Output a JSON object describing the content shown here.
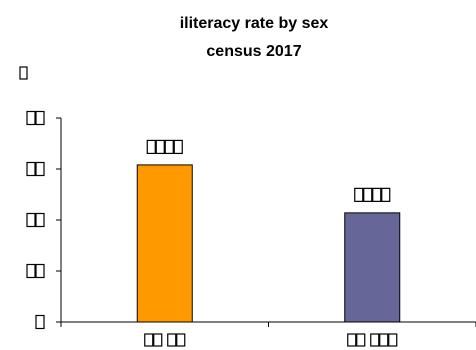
{
  "chart_data": {
    "type": "bar",
    "title": "iliteracy rate by sex",
    "subtitle": "census 2017",
    "xlabel": "",
    "ylabel": "",
    "ylim": [
      0,
      40
    ],
    "y_ticks": [
      0,
      10,
      20,
      30,
      40
    ],
    "categories": [
      "",
      ""
    ],
    "values": [
      30.8,
      21.4
    ],
    "data_labels": [
      "",
      ""
    ],
    "bar_colors": [
      "#ff9900",
      "#666699"
    ],
    "legend": "none",
    "grid": false
  }
}
